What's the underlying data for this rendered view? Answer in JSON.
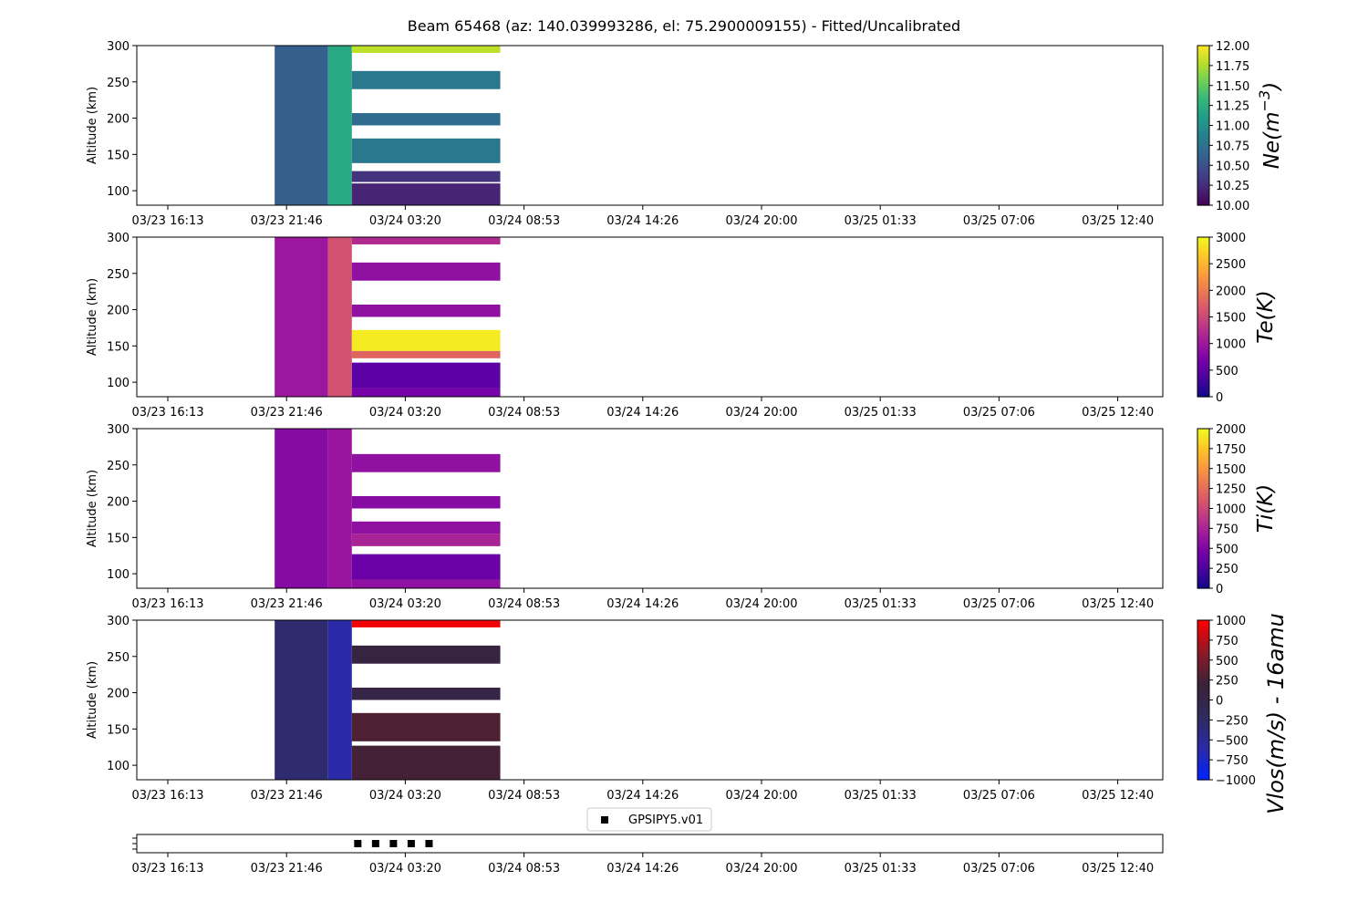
{
  "title": "Beam 65468 (az: 140.039993286, el: 75.2900009155) - Fitted/Uncalibrated",
  "x_tick_labels": [
    "03/23 16:13",
    "03/23 21:46",
    "03/24 03:20",
    "03/24 08:53",
    "03/24 14:26",
    "03/24 20:00",
    "03/25 01:33",
    "03/25 07:06",
    "03/25 12:40"
  ],
  "chart_data": [
    {
      "type": "heatmap",
      "ylabel": "Altitude (km)",
      "ylim": [
        80,
        300
      ],
      "y_ticks": [
        100,
        150,
        200,
        250,
        300
      ],
      "colorbar": {
        "label": "Ne(m^-3)",
        "colormap": "viridis",
        "range": [
          10.0,
          12.0
        ],
        "ticks": [
          10.0,
          10.25,
          10.5,
          10.75,
          11.0,
          11.25,
          11.5,
          11.75,
          12.0
        ],
        "tick_labels": [
          "10.00",
          "10.25",
          "10.50",
          "10.75",
          "11.00",
          "11.25",
          "11.50",
          "11.75",
          "12.00"
        ]
      },
      "cells": [
        {
          "t0": 0.9,
          "t1": 1.35,
          "alt0": 80,
          "alt1": 300,
          "v": 10.6
        },
        {
          "t0": 1.35,
          "t1": 1.55,
          "alt0": 80,
          "alt1": 300,
          "v": 11.2
        },
        {
          "t0": 1.55,
          "t1": 2.8,
          "alt0": 290,
          "alt1": 300,
          "v": 11.8
        },
        {
          "t0": 1.55,
          "t1": 2.8,
          "alt0": 240,
          "alt1": 265,
          "v": 10.8
        },
        {
          "t0": 1.55,
          "t1": 2.8,
          "alt0": 190,
          "alt1": 207,
          "v": 10.7
        },
        {
          "t0": 1.55,
          "t1": 2.8,
          "alt0": 138,
          "alt1": 172,
          "v": 10.8
        },
        {
          "t0": 1.55,
          "t1": 2.8,
          "alt0": 112,
          "alt1": 127,
          "v": 10.3
        },
        {
          "t0": 1.55,
          "t1": 2.8,
          "alt0": 80,
          "alt1": 110,
          "v": 10.2
        }
      ]
    },
    {
      "type": "heatmap",
      "ylabel": "Altitude (km)",
      "ylim": [
        80,
        300
      ],
      "y_ticks": [
        100,
        150,
        200,
        250,
        300
      ],
      "colorbar": {
        "label": "Te(K)",
        "colormap": "plasma",
        "range": [
          0,
          3000
        ],
        "ticks": [
          0,
          500,
          1000,
          1500,
          2000,
          2500,
          3000
        ],
        "tick_labels": [
          "0",
          "500",
          "1000",
          "1500",
          "2000",
          "2500",
          "3000"
        ]
      },
      "cells": [
        {
          "t0": 0.9,
          "t1": 1.35,
          "alt0": 80,
          "alt1": 300,
          "v": 1000
        },
        {
          "t0": 1.35,
          "t1": 1.55,
          "alt0": 80,
          "alt1": 300,
          "v": 1600
        },
        {
          "t0": 1.55,
          "t1": 2.8,
          "alt0": 290,
          "alt1": 300,
          "v": 1200
        },
        {
          "t0": 1.55,
          "t1": 2.8,
          "alt0": 240,
          "alt1": 265,
          "v": 900
        },
        {
          "t0": 1.55,
          "t1": 2.8,
          "alt0": 190,
          "alt1": 207,
          "v": 900
        },
        {
          "t0": 1.55,
          "t1": 2.8,
          "alt0": 143,
          "alt1": 172,
          "v": 2900
        },
        {
          "t0": 1.55,
          "t1": 2.8,
          "alt0": 133,
          "alt1": 143,
          "v": 1800
        },
        {
          "t0": 1.55,
          "t1": 2.8,
          "alt0": 92,
          "alt1": 127,
          "v": 500
        },
        {
          "t0": 1.55,
          "t1": 2.8,
          "alt0": 80,
          "alt1": 92,
          "v": 700
        }
      ]
    },
    {
      "type": "heatmap",
      "ylabel": "Altitude (km)",
      "ylim": [
        80,
        300
      ],
      "y_ticks": [
        100,
        150,
        200,
        250,
        300
      ],
      "colorbar": {
        "label": "Ti(K)",
        "colormap": "plasma",
        "range": [
          0,
          2000
        ],
        "ticks": [
          0,
          250,
          500,
          750,
          1000,
          1250,
          1500,
          1750,
          2000
        ],
        "tick_labels": [
          "0",
          "250",
          "500",
          "750",
          "1000",
          "1250",
          "1500",
          "1750",
          "2000"
        ]
      },
      "cells": [
        {
          "t0": 0.9,
          "t1": 1.35,
          "alt0": 80,
          "alt1": 300,
          "v": 550
        },
        {
          "t0": 1.35,
          "t1": 1.55,
          "alt0": 80,
          "alt1": 300,
          "v": 650
        },
        {
          "t0": 1.55,
          "t1": 2.8,
          "alt0": 240,
          "alt1": 265,
          "v": 600
        },
        {
          "t0": 1.55,
          "t1": 2.8,
          "alt0": 190,
          "alt1": 207,
          "v": 550
        },
        {
          "t0": 1.55,
          "t1": 2.8,
          "alt0": 155,
          "alt1": 172,
          "v": 600
        },
        {
          "t0": 1.55,
          "t1": 2.8,
          "alt0": 138,
          "alt1": 155,
          "v": 750
        },
        {
          "t0": 1.55,
          "t1": 2.8,
          "alt0": 92,
          "alt1": 127,
          "v": 400
        },
        {
          "t0": 1.55,
          "t1": 2.8,
          "alt0": 80,
          "alt1": 92,
          "v": 600
        }
      ]
    },
    {
      "type": "heatmap",
      "ylabel": "Altitude (km)",
      "ylim": [
        80,
        300
      ],
      "y_ticks": [
        100,
        150,
        200,
        250,
        300
      ],
      "colorbar": {
        "label": "Vlos(m/s) - 16amu",
        "colormap": "blue-black-red",
        "range": [
          -1000,
          1000
        ],
        "ticks": [
          -1000,
          -750,
          -500,
          -250,
          0,
          250,
          500,
          750,
          1000
        ],
        "tick_labels": [
          "−1000",
          "−750",
          "−500",
          "−250",
          "0",
          "250",
          "500",
          "750",
          "1000"
        ]
      },
      "cells": [
        {
          "t0": 0.9,
          "t1": 1.35,
          "alt0": 80,
          "alt1": 300,
          "v": -300
        },
        {
          "t0": 1.35,
          "t1": 1.55,
          "alt0": 80,
          "alt1": 300,
          "v": -600
        },
        {
          "t0": 1.55,
          "t1": 2.8,
          "alt0": 290,
          "alt1": 300,
          "v": 950
        },
        {
          "t0": 1.55,
          "t1": 2.8,
          "alt0": 240,
          "alt1": 265,
          "v": 100
        },
        {
          "t0": 1.55,
          "t1": 2.8,
          "alt0": 190,
          "alt1": 207,
          "v": 50
        },
        {
          "t0": 1.55,
          "t1": 2.8,
          "alt0": 133,
          "alt1": 172,
          "v": 300
        },
        {
          "t0": 1.55,
          "t1": 2.8,
          "alt0": 80,
          "alt1": 127,
          "v": 250
        }
      ]
    },
    {
      "type": "scatter",
      "legend": {
        "entries": [
          "GPSIPY5.v01"
        ],
        "placement": "top-center",
        "marker": "square",
        "color": "#000000"
      },
      "points": [
        {
          "t": 1.6
        },
        {
          "t": 1.75
        },
        {
          "t": 1.9
        },
        {
          "t": 2.05
        },
        {
          "t": 2.2
        }
      ]
    }
  ]
}
